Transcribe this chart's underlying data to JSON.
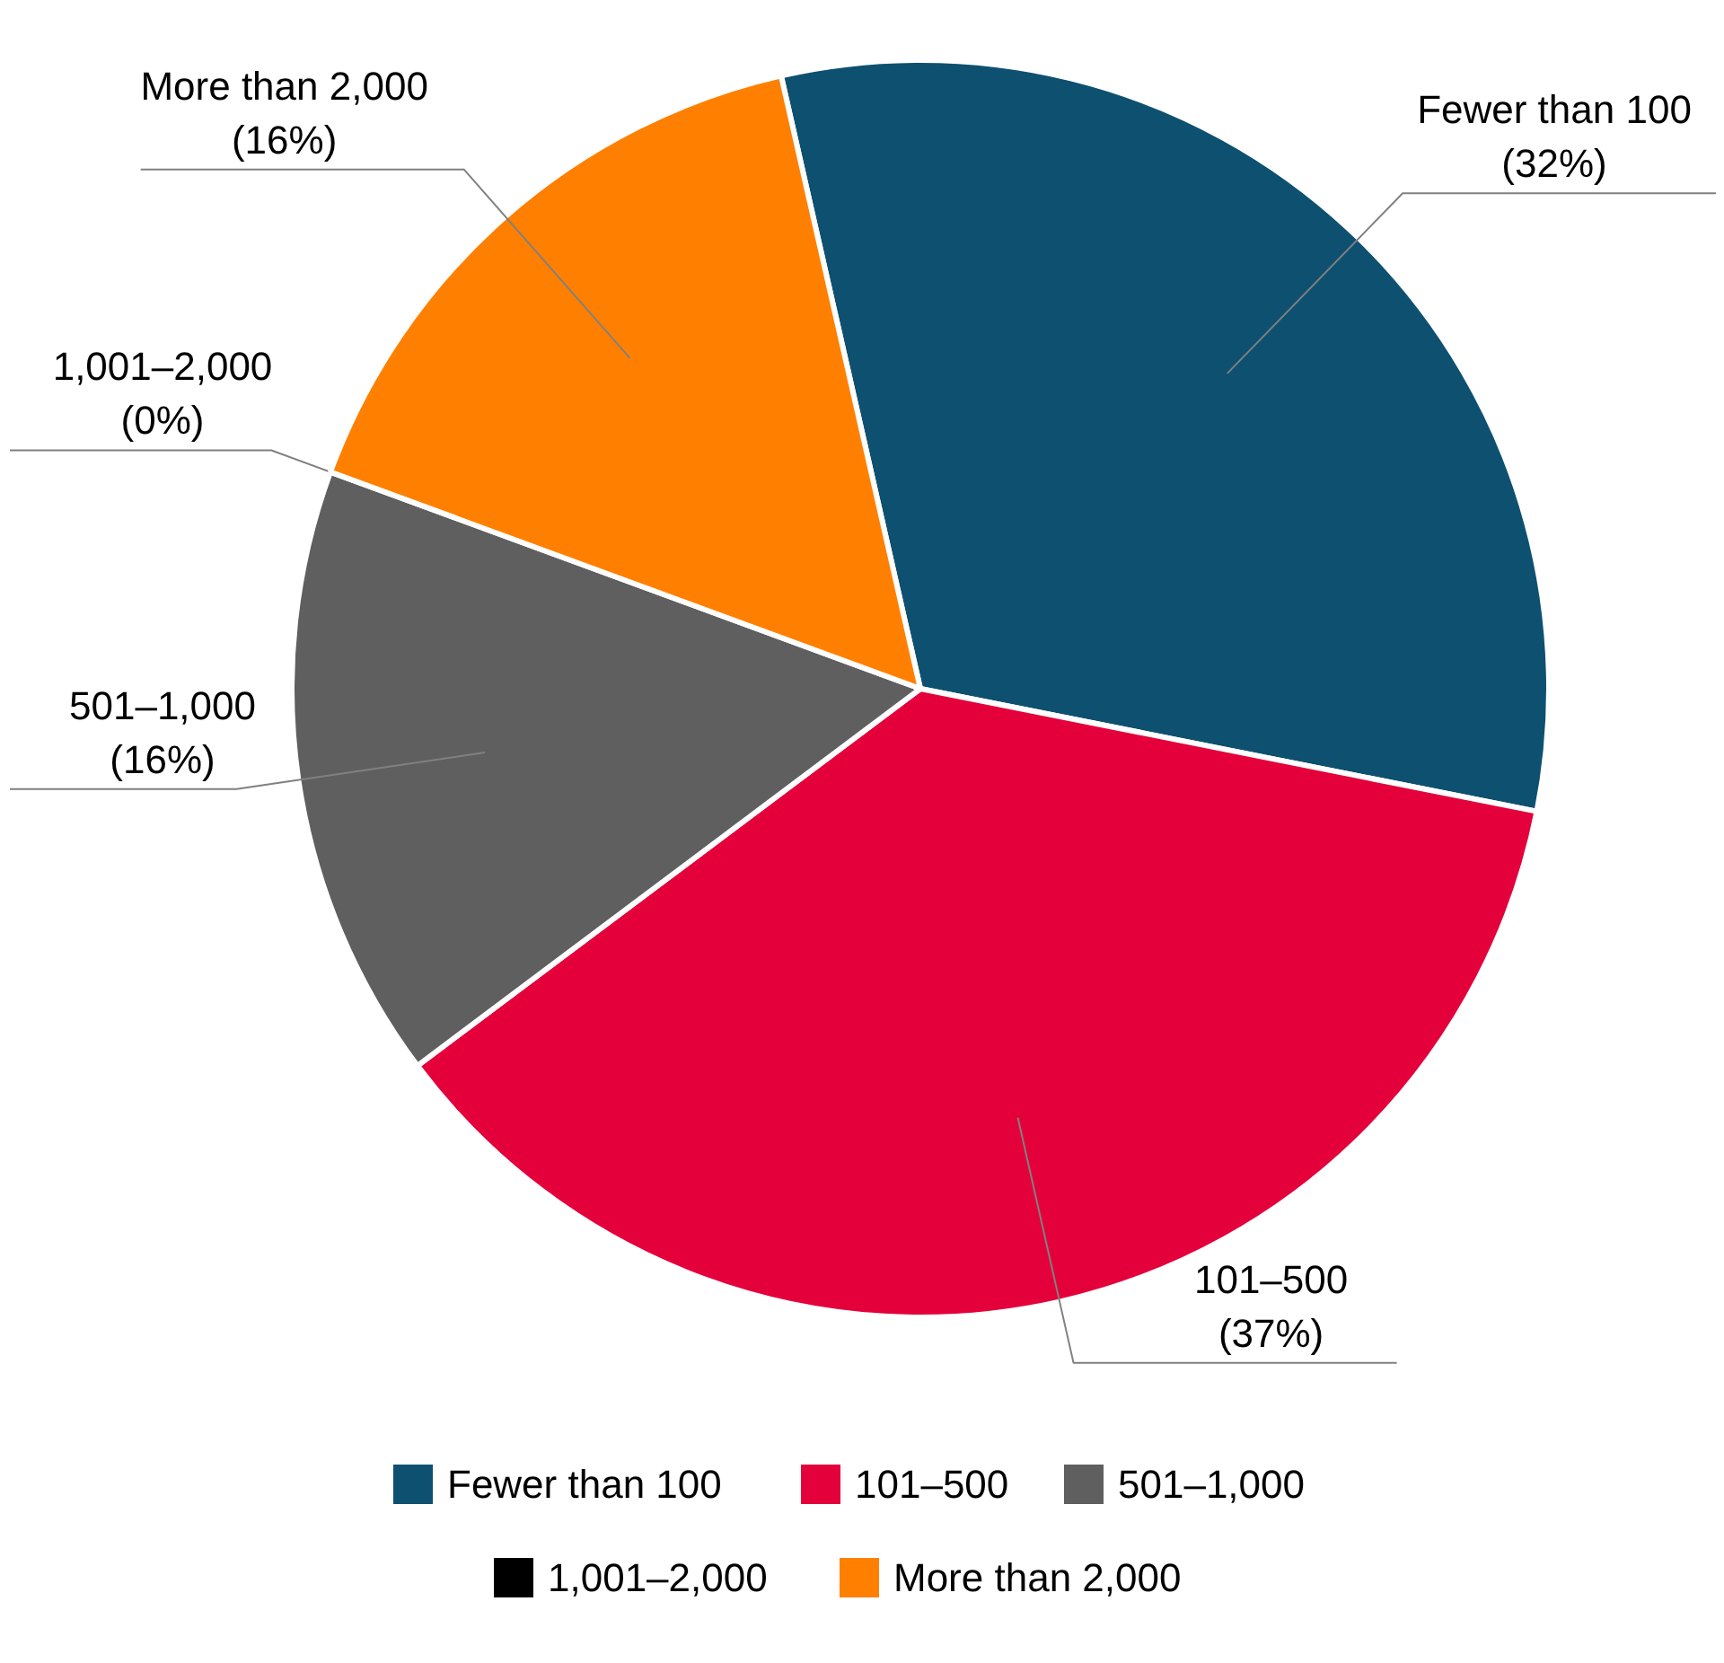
{
  "chart_data": {
    "type": "pie",
    "categories": [
      "Fewer than 100",
      "101–500",
      "501–1,000",
      "1,001–2,000",
      "More than 2,000"
    ],
    "values": [
      32,
      37,
      16,
      0,
      16
    ],
    "value_labels": [
      "(32%)",
      "(37%)",
      "(16%)",
      "(0%)",
      "(16%)"
    ],
    "colors": [
      "#0e5070",
      "#e4003b",
      "#5f5f5f",
      "#000000",
      "#ff8000"
    ],
    "legend": "bottom"
  }
}
